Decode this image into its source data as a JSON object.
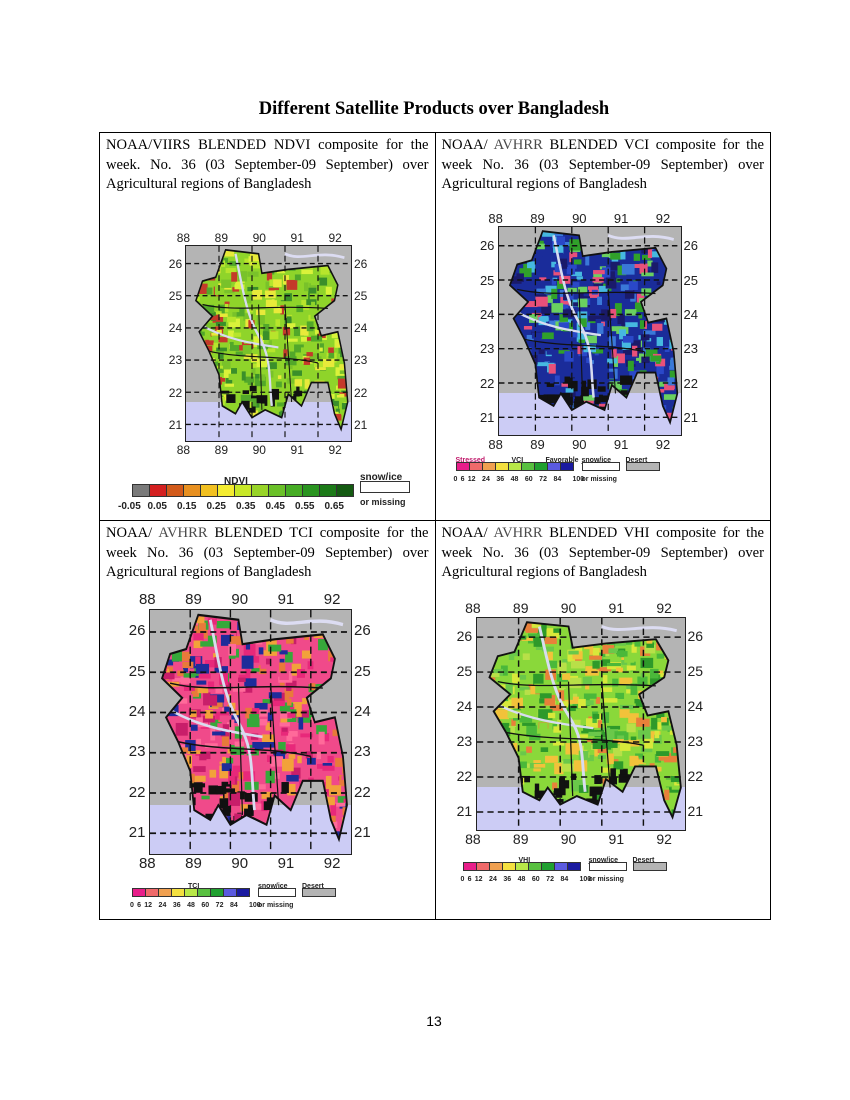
{
  "title": "Different Satellite Products over Bangladesh",
  "page_number": "13",
  "panels": [
    {
      "caption_a": "NOAA/VIIRS BLENDED NDVI composite for the week. No. 36 (03 September-09 September) over Agricultural regions of Bangladesh",
      "caption_gray": "",
      "caption_b": "",
      "map": {
        "longitudes": [
          "88",
          "89",
          "90",
          "91",
          "92"
        ],
        "latitudes": [
          "26",
          "25",
          "24",
          "23",
          "22",
          "21"
        ],
        "palette": [
          "#8fd42a",
          "#b7e52c",
          "#d9f23a",
          "#79c22a",
          "#52a82a",
          "#e8ea3a",
          "#c43a2a",
          "#3a8f2a"
        ],
        "dark_south": true
      },
      "legend": {
        "title": "NDVI",
        "colors": [
          "#7a7a7a",
          "#d42020",
          "#d25a1a",
          "#e89020",
          "#f2c020",
          "#f4ec30",
          "#c8e828",
          "#98d428",
          "#6ac028",
          "#46ac24",
          "#2a9420",
          "#1c7a18",
          "#145a12"
        ],
        "ticks": [
          "-0.05",
          "0.05",
          "0.15",
          "0.25",
          "0.35",
          "0.45",
          "0.55",
          "0.65"
        ],
        "snow_label": "snow/ice",
        "missing_label": "or missing",
        "desert_label": ""
      }
    },
    {
      "caption_a": "NOAA/ ",
      "caption_gray": "AVHRR",
      "caption_b": " BLENDED VCI composite for the week No. 36 (03 September-09 September) over Agricultural regions of Bangladesh",
      "map": {
        "longitudes": [
          "88",
          "89",
          "90",
          "91",
          "92"
        ],
        "latitudes": [
          "26",
          "25",
          "24",
          "23",
          "22",
          "21"
        ],
        "palette": [
          "#1a2c9a",
          "#2a48c8",
          "#3a78d8",
          "#30a02a",
          "#6ad060",
          "#e8507a",
          "#1a1a6a",
          "#46b8e0"
        ],
        "dark_south": true
      },
      "legend": {
        "title": "VCI",
        "stressed": "Stressed",
        "favorable": "Favorable",
        "colors": [
          "#e81e8a",
          "#f06a6a",
          "#f0a050",
          "#f4e040",
          "#b8e848",
          "#58c040",
          "#20a030",
          "#5a5ae0",
          "#1a1aa0"
        ],
        "ticks": [
          "0",
          "6",
          "12",
          "24",
          "36",
          "48",
          "60",
          "72",
          "84",
          "100"
        ],
        "snow_label": "snow/ice",
        "missing_label": "or missing",
        "desert_label": "Desert"
      }
    },
    {
      "caption_a": "NOAA/ ",
      "caption_gray": "AVHRR",
      "caption_b": " BLENDED TCI composite for the week No. 36 (03 September-09 September) over Agricultural regions of Bangladesh",
      "map": {
        "longitudes": [
          "88",
          "89",
          "90",
          "91",
          "92"
        ],
        "latitudes": [
          "26",
          "25",
          "24",
          "23",
          "22",
          "21"
        ],
        "palette": [
          "#f04a8a",
          "#e8287a",
          "#ff6a9a",
          "#f2a23a",
          "#36a83a",
          "#1e2c9a",
          "#e87a3a",
          "#c81e6a"
        ],
        "dark_south": true
      },
      "legend": {
        "title": "TCI",
        "colors": [
          "#e81e8a",
          "#f06a6a",
          "#f0a050",
          "#f4e040",
          "#b8e848",
          "#58c040",
          "#20a030",
          "#5a5ae0",
          "#1a1aa0"
        ],
        "ticks": [
          "0",
          "6",
          "12",
          "24",
          "36",
          "48",
          "60",
          "72",
          "84",
          "100"
        ],
        "snow_label": "snow/ice",
        "missing_label": "or missing",
        "desert_label": "Desert"
      }
    },
    {
      "caption_a": "NOAA/ ",
      "caption_gray": "AVHRR",
      "caption_b": " BLENDED VHI composite for the week No. 36 (03 September-09 September) over Agricultural regions of Bangladesh",
      "map": {
        "longitudes": [
          "88",
          "89",
          "90",
          "91",
          "92"
        ],
        "latitudes": [
          "26",
          "25",
          "24",
          "23",
          "22",
          "21"
        ],
        "palette": [
          "#8ad83a",
          "#4ab83a",
          "#d8e83a",
          "#f2c23a",
          "#6ac84a",
          "#2e9a2a",
          "#e8803a",
          "#b8e048"
        ],
        "dark_south": true
      },
      "legend": {
        "title": "VHI",
        "colors": [
          "#e81e8a",
          "#f06a6a",
          "#f0a050",
          "#f4e040",
          "#b8e848",
          "#58c040",
          "#20a030",
          "#5a5ae0",
          "#1a1aa0"
        ],
        "ticks": [
          "0",
          "6",
          "12",
          "24",
          "36",
          "48",
          "60",
          "72",
          "84",
          "100"
        ],
        "snow_label": "snow/ice",
        "missing_label": "or missing",
        "desert_label": "Desert"
      }
    }
  ]
}
